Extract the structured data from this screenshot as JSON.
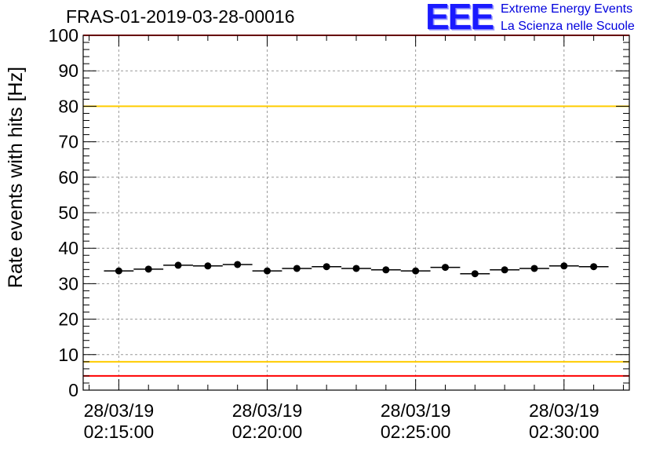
{
  "title": "FRAS-01-2019-03-28-00016",
  "logo": {
    "mark": "EEE",
    "line1": "Extreme Energy Events",
    "line2": "La Scienza nelle Scuole",
    "color": "#0000dd"
  },
  "chart_data": {
    "type": "scatter",
    "title": "FRAS-01-2019-03-28-00016",
    "xlabel": "",
    "ylabel": "Rate events with hits [Hz]",
    "ylim": [
      0,
      100
    ],
    "yticks": [
      0,
      10,
      20,
      30,
      40,
      50,
      60,
      70,
      80,
      90,
      100
    ],
    "xlim_minutes": [
      -1.2,
      17.2
    ],
    "xticks": [
      {
        "minute": 0,
        "date": "28/03/19",
        "time": "02:15:00"
      },
      {
        "minute": 5,
        "date": "28/03/19",
        "time": "02:20:00"
      },
      {
        "minute": 10,
        "date": "28/03/19",
        "time": "02:25:00"
      },
      {
        "minute": 15,
        "date": "28/03/19",
        "time": "02:30:00"
      }
    ],
    "grid": true,
    "bin_width_minutes": 1,
    "series": [
      {
        "name": "rate",
        "x_minutes": [
          0,
          1,
          2,
          3,
          4,
          5,
          6,
          7,
          8,
          9,
          10,
          11,
          12,
          13,
          14,
          15,
          16
        ],
        "values": [
          33.6,
          34.1,
          35.2,
          35.0,
          35.4,
          33.6,
          34.3,
          34.8,
          34.3,
          33.9,
          33.6,
          34.6,
          32.8,
          33.9,
          34.3,
          35.0,
          34.8
        ]
      }
    ],
    "reference_lines": [
      {
        "name": "upper-red",
        "value": 100,
        "color": "#ff0000"
      },
      {
        "name": "upper-yellow",
        "value": 80,
        "color": "#ffcc00"
      },
      {
        "name": "lower-yellow",
        "value": 8,
        "color": "#ffcc00"
      },
      {
        "name": "lower-red",
        "value": 4,
        "color": "#ff0000"
      }
    ]
  }
}
